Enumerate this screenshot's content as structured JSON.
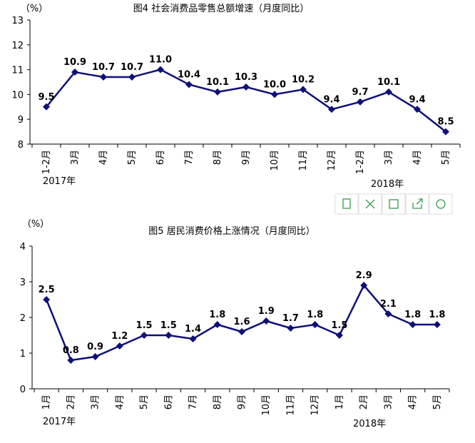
{
  "chart_data": [
    {
      "type": "line",
      "title": "图4  社会消费品零售总额增速（月度同比）",
      "y_label": "（%）",
      "categories": [
        "1-2月",
        "3月",
        "4月",
        "5月",
        "6月",
        "7月",
        "8月",
        "9月",
        "10月",
        "11月",
        "12月",
        "1-2月",
        "3月",
        "4月",
        "5月"
      ],
      "series": [
        {
          "color": "#0f0f7a",
          "values": [
            9.5,
            10.9,
            10.7,
            10.7,
            11.0,
            10.4,
            10.1,
            10.3,
            10.0,
            10.2,
            9.4,
            9.7,
            10.1,
            9.4,
            8.5
          ],
          "value_labels": [
            "9.5",
            "10.9",
            "10.7",
            "10.7",
            "11.0",
            "10.4",
            "10.1",
            "10.3",
            "10.0",
            "10.2",
            "9.4",
            "9.7",
            "10.1",
            "9.4",
            "8.5"
          ]
        }
      ],
      "ylim": [
        8,
        13
      ],
      "yticks": [
        8,
        9,
        10,
        11,
        12,
        13
      ],
      "annotations": [
        "2017年",
        "2018年"
      ]
    },
    {
      "type": "line",
      "title": "图5   居民消费价格上涨情况（月度同比）",
      "y_label": "（%）",
      "categories": [
        "1月",
        "2月",
        "3月",
        "4月",
        "5月",
        "6月",
        "7月",
        "8月",
        "9月",
        "10月",
        "11月",
        "12月",
        "1月",
        "2月",
        "3月",
        "4月",
        "5月"
      ],
      "series": [
        {
          "color": "#0f0f7a",
          "values": [
            2.5,
            0.8,
            0.9,
            1.2,
            1.5,
            1.5,
            1.4,
            1.8,
            1.6,
            1.9,
            1.7,
            1.8,
            1.5,
            2.9,
            2.1,
            1.8,
            1.8
          ]
        }
      ],
      "ylim": [
        0,
        4
      ],
      "yticks": [
        0,
        1,
        2,
        3,
        4
      ],
      "annotations": [
        "2017年",
        "2018年"
      ]
    }
  ]
}
